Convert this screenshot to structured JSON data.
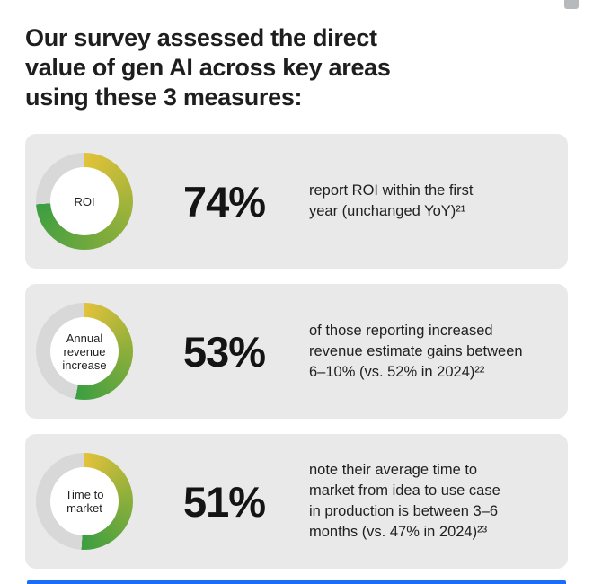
{
  "page": {
    "title": "Our survey assessed the direct\nvalue of gen AI across key areas\nusing these 3 measures:"
  },
  "cards": [
    {
      "donut_label": "ROI",
      "percent": "74%",
      "percent_value": 74,
      "description": "report ROI within the first\nyear (unchanged YoY)²¹"
    },
    {
      "donut_label": "Annual revenue increase",
      "percent": "53%",
      "percent_value": 53,
      "description": "of those reporting increased\nrevenue estimate gains between\n6–10% (vs. 52% in 2024)²²"
    },
    {
      "donut_label": "Time to market",
      "percent": "51%",
      "percent_value": 51,
      "description": "note their average time to\nmarket from idea to use case\nin production is between 3–6\nmonths (vs. 47% in 2024)²³"
    }
  ],
  "colors": {
    "card_background": "#e9e9e9",
    "donut_start": "#e3c23a",
    "donut_mid": "#8faf3b",
    "donut_end": "#3c9e41",
    "donut_track": "#d8d8d8",
    "accent_bar": "#1a6ef5",
    "text": "#1f1f1f"
  },
  "chart_data": [
    {
      "type": "pie",
      "title": "ROI",
      "labels": [
        "report ROI within the first year (unchanged YoY)",
        "other"
      ],
      "values": [
        74,
        26
      ],
      "annotation": "74% report ROI within the first year (unchanged YoY)²¹"
    },
    {
      "type": "pie",
      "title": "Annual revenue increase",
      "labels": [
        "of those reporting increased revenue estimate gains between 6–10% (vs. 52% in 2024)",
        "other"
      ],
      "values": [
        53,
        47
      ],
      "annotation": "53% of those reporting increased revenue estimate gains between 6–10% (vs. 52% in 2024)²²"
    },
    {
      "type": "pie",
      "title": "Time to market",
      "labels": [
        "note their average time to market from idea to use case in production is between 3–6 months (vs. 47% in 2024)",
        "other"
      ],
      "values": [
        51,
        49
      ],
      "annotation": "51% note their average time to market from idea to use case in production is between 3–6 months (vs. 47% in 2024)²³"
    }
  ]
}
